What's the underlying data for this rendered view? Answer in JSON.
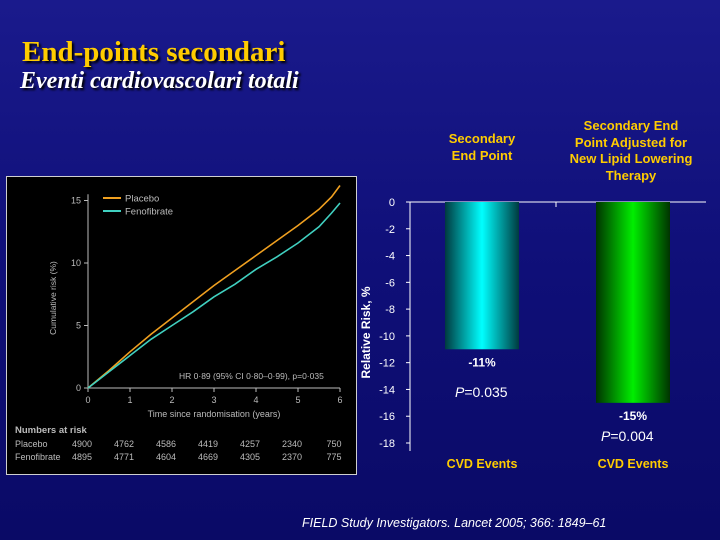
{
  "slide": {
    "title": "End-points secondari",
    "subtitle": "Eventi cardiovascolari totali",
    "citation": "FIELD Study Investigators. Lancet 2005; 366: 1849–61",
    "colors": {
      "background": "#12127f",
      "title": "#ffcc00",
      "bar1": "#00e5ee",
      "bar2": "#00dd00",
      "placebo": "#f0a020",
      "fenofibrate": "#40d0c0"
    }
  },
  "chart_data": [
    {
      "type": "line",
      "title": "",
      "xlabel": "Time since randomisation (years)",
      "ylabel": "Cumulative risk (%)",
      "xlim": [
        0,
        6
      ],
      "ylim": [
        0,
        16
      ],
      "x_ticks": [
        "0",
        "1",
        "2",
        "3",
        "4",
        "5",
        "6"
      ],
      "y_ticks": [
        "0",
        "5",
        "10",
        "15"
      ],
      "legend": "top-left",
      "annotation": "HR 0·89 (95% CI 0·80–0·99), p=0·035",
      "series": [
        {
          "name": "Placebo",
          "color": "#f0a020",
          "x": [
            0,
            0.5,
            1,
            1.5,
            2,
            2.5,
            3,
            3.5,
            4,
            4.5,
            5,
            5.5,
            5.8,
            6
          ],
          "y": [
            0,
            1.4,
            2.9,
            4.3,
            5.6,
            6.9,
            8.2,
            9.4,
            10.6,
            11.8,
            13.0,
            14.3,
            15.3,
            16.2
          ]
        },
        {
          "name": "Fenofibrate",
          "color": "#40d0c0",
          "x": [
            0,
            0.5,
            1,
            1.5,
            2,
            2.5,
            3,
            3.5,
            4,
            4.5,
            5,
            5.5,
            5.8,
            6
          ],
          "y": [
            0,
            1.3,
            2.6,
            3.9,
            5.0,
            6.1,
            7.3,
            8.3,
            9.5,
            10.5,
            11.6,
            12.9,
            14.0,
            14.8
          ]
        }
      ],
      "numbers_at_risk": {
        "heading": "Numbers at risk",
        "rows": [
          {
            "label": "Placebo",
            "values": [
              "4900",
              "4762",
              "4586",
              "4419",
              "4257",
              "2340",
              "750"
            ]
          },
          {
            "label": "Fenofibrate",
            "values": [
              "4895",
              "4771",
              "4604",
              "4669",
              "4305",
              "2370",
              "775"
            ]
          }
        ]
      }
    },
    {
      "type": "bar",
      "title": "",
      "xlabel": "",
      "ylabel": "Relative Risk, %",
      "ylim": [
        -18,
        0
      ],
      "y_ticks": [
        "0",
        "-2",
        "-4",
        "-6",
        "-8",
        "-10",
        "-12",
        "-14",
        "-16",
        "-18"
      ],
      "categories": [
        "CVD Events",
        "CVD Events"
      ],
      "column_headers": [
        "Secondary End Point",
        "Secondary End Point Adjusted for New Lipid Lowering Therapy"
      ],
      "values": [
        -11,
        -15
      ],
      "value_labels": [
        "-11%",
        "-15%"
      ],
      "p_values": [
        {
          "label": "P",
          "value": "=0.035"
        },
        {
          "label": "P",
          "value": "=0.004"
        }
      ]
    }
  ]
}
